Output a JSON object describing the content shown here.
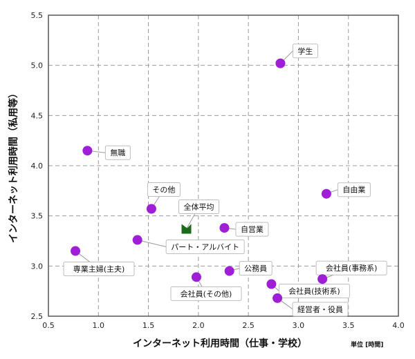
{
  "chart_data": {
    "type": "scatter",
    "xlabel": "インターネット利用時間（仕事・学校）",
    "ylabel": "インターネット利用時間（私用等）",
    "unit_note": "単位 [時間]",
    "xlim": [
      0.5,
      4.0
    ],
    "ylim": [
      2.5,
      5.5
    ],
    "xticks": [
      "0.5",
      "1.0",
      "1.5",
      "2.0",
      "2.5",
      "3.0",
      "3.5",
      "4.0"
    ],
    "yticks": [
      "2.5",
      "3.0",
      "3.5",
      "4.0",
      "4.5",
      "5.0",
      "5.5"
    ],
    "grid": true,
    "colors": {
      "point": "#9e1fd6",
      "average": "#1b6b1b",
      "grid": "#9a9a9a",
      "frame": "#555555"
    },
    "points": [
      {
        "label": "学生",
        "x": 2.82,
        "y": 5.02
      },
      {
        "label": "無職",
        "x": 0.89,
        "y": 4.15
      },
      {
        "label": "自由業",
        "x": 3.28,
        "y": 3.72
      },
      {
        "label": "その他",
        "x": 1.53,
        "y": 3.57
      },
      {
        "label": "自営業",
        "x": 2.26,
        "y": 3.38
      },
      {
        "label": "パート・アルバイト",
        "x": 1.39,
        "y": 3.26
      },
      {
        "label": "専業主婦(主夫)",
        "x": 0.77,
        "y": 3.15
      },
      {
        "label": "公務員",
        "x": 2.31,
        "y": 2.95
      },
      {
        "label": "会社員(その他)",
        "x": 1.98,
        "y": 2.89
      },
      {
        "label": "会社員(事務系)",
        "x": 3.24,
        "y": 2.87
      },
      {
        "label": "会社員(技術系)",
        "x": 2.73,
        "y": 2.82
      },
      {
        "label": "経営者・役員",
        "x": 2.79,
        "y": 2.68
      }
    ],
    "average": {
      "label": "全体平均",
      "x": 1.88,
      "y": 3.37
    }
  }
}
